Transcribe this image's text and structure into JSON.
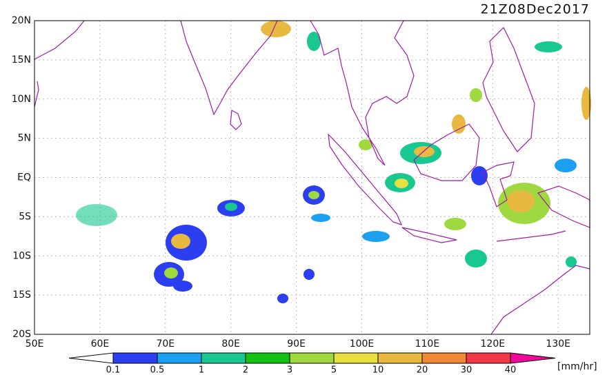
{
  "title": "21Z08Dec2017",
  "lat_labels": [
    "20N",
    "15N",
    "10N",
    "5N",
    "EQ",
    "5S",
    "10S",
    "15S",
    "20S"
  ],
  "lon_labels": [
    "50E",
    "60E",
    "70E",
    "80E",
    "90E",
    "100E",
    "110E",
    "120E",
    "130E"
  ],
  "legend": {
    "ticks": [
      "0.1",
      "0.5",
      "1",
      "2",
      "3",
      "5",
      "10",
      "20",
      "30",
      "40"
    ],
    "colors": [
      "#ffffff",
      "#2b3ff0",
      "#1da0f0",
      "#18c890",
      "#14c014",
      "#a0d840",
      "#e8e040",
      "#e8b840",
      "#f08838",
      "#f03848",
      "#f00898"
    ],
    "unit": "[mm/hr]"
  }
}
